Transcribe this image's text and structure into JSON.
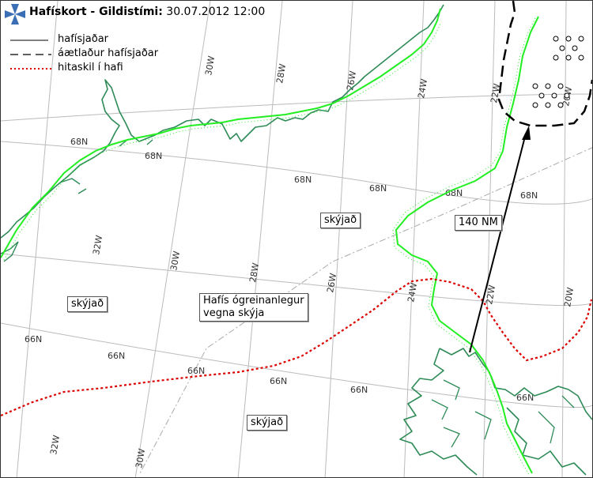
{
  "header": {
    "title": "Hafískort - Gildistími:",
    "datetime": "30.07.2012 12:00"
  },
  "legend": [
    {
      "label": "hafísjaðar",
      "style": "solid"
    },
    {
      "label": "áætlaður hafísjaðar",
      "style": "dashed"
    },
    {
      "label": "hitaskil í hafi",
      "style": "dotted-red"
    }
  ],
  "annotations": {
    "cloudy_1": "skýjað",
    "cloudy_2": "skýjað",
    "cloudy_3": "skýjað",
    "ice_note_line1": "Hafís ógreinanlegur",
    "ice_note_line2": "vegna skýja",
    "distance": "140 NM"
  },
  "graticule": {
    "lon_labels": [
      "32W",
      "30W",
      "28W",
      "26W",
      "24W",
      "22W",
      "20W"
    ],
    "lat_labels": [
      "68N",
      "66N"
    ]
  },
  "colors": {
    "coast": "#2e8b57",
    "ice_edge": "#22ee22",
    "front": "#dd0000",
    "grid": "#bbbbbb"
  }
}
